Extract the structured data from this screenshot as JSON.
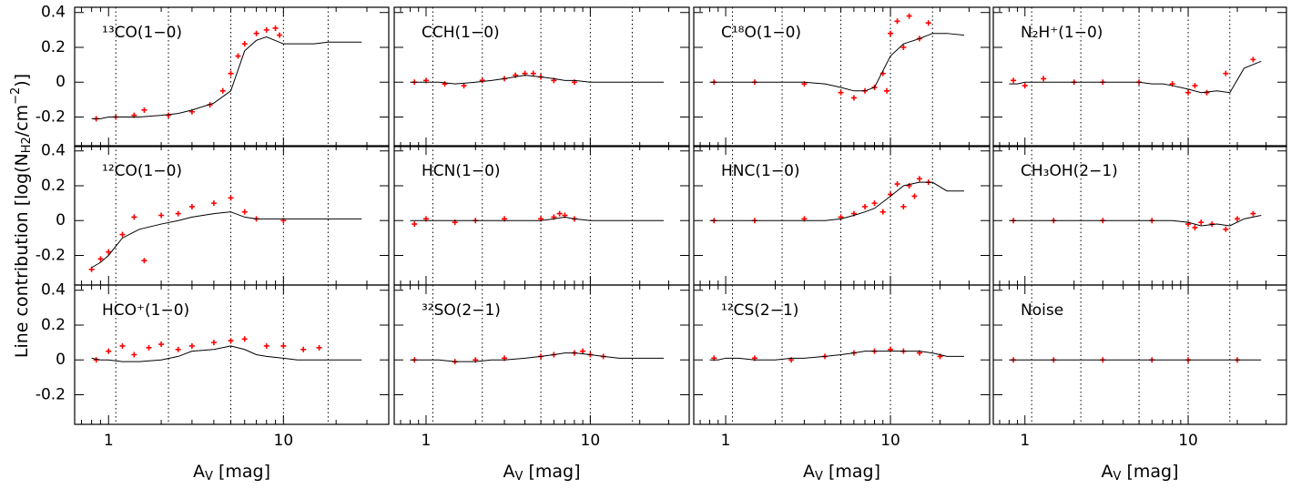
{
  "chart_data": {
    "type": "scatter",
    "log_x": true,
    "xlim": [
      0.64,
      40
    ],
    "xticks": [
      1,
      10
    ],
    "ylim": [
      -0.37,
      0.43
    ],
    "yticks": [
      -0.2,
      0,
      0.2,
      0.4
    ],
    "vlines": [
      1.1,
      2.2,
      5,
      10,
      18
    ],
    "y_label": [
      "Line contribution [log(N",
      "H2",
      "/cm",
      "−2",
      ")]"
    ],
    "x_label": [
      "A",
      "V",
      " [mag]"
    ],
    "line_color": "#000000",
    "point_color": "#ff0000",
    "line_x": [
      0.8,
      0.9,
      1,
      1.2,
      1.5,
      2,
      2.5,
      3,
      4,
      5,
      6,
      7,
      8,
      10,
      12,
      15,
      18,
      22,
      28
    ],
    "panels": [
      {
        "title": "¹³CO(1−0)",
        "line": [
          -0.21,
          -0.21,
          -0.2,
          -0.2,
          -0.2,
          -0.19,
          -0.18,
          -0.16,
          -0.12,
          -0.05,
          0.18,
          0.24,
          0.26,
          0.22,
          0.22,
          0.22,
          0.23,
          0.23,
          0.23
        ],
        "points": {
          "x": [
            0.85,
            1.1,
            1.4,
            1.6,
            2.2,
            3,
            3.8,
            4.5,
            5,
            5.5,
            6,
            7,
            8,
            9,
            9.5
          ],
          "y": [
            -0.21,
            -0.2,
            -0.19,
            -0.16,
            -0.19,
            -0.17,
            -0.13,
            -0.05,
            0.05,
            0.15,
            0.22,
            0.28,
            0.3,
            0.31,
            0.27
          ]
        }
      },
      {
        "title": "CCH(1−0)",
        "line": [
          0,
          0,
          0,
          0,
          -0.01,
          0,
          0.01,
          0.02,
          0.04,
          0.03,
          0.02,
          0.01,
          0.01,
          0,
          0,
          0,
          0,
          0,
          0
        ],
        "points": {
          "x": [
            0.85,
            1,
            1.3,
            1.7,
            2.2,
            3,
            3.5,
            4,
            4.5,
            5,
            6,
            8
          ],
          "y": [
            0,
            0.01,
            -0.01,
            -0.02,
            0.01,
            0.02,
            0.04,
            0.05,
            0.05,
            0.03,
            0.01,
            0
          ]
        }
      },
      {
        "title": "C¹⁸O(1−0)",
        "line": [
          0,
          0,
          0,
          0,
          0,
          0,
          0,
          0,
          -0.01,
          -0.03,
          -0.05,
          -0.05,
          -0.03,
          0.15,
          0.22,
          0.25,
          0.28,
          0.28,
          0.27
        ],
        "points": {
          "x": [
            0.85,
            1.5,
            3,
            5,
            6,
            7,
            8,
            9,
            9.5,
            10,
            11,
            12,
            13,
            15,
            17
          ],
          "y": [
            0,
            0,
            -0.01,
            -0.06,
            -0.09,
            -0.05,
            -0.03,
            0.05,
            -0.05,
            0.28,
            0.35,
            0.2,
            0.38,
            0.25,
            0.34
          ]
        }
      },
      {
        "title": "N₂H⁺(1−0)",
        "line": [
          -0.01,
          -0.01,
          0,
          0,
          0,
          0,
          0,
          0,
          0,
          0,
          -0.01,
          -0.01,
          -0.02,
          -0.04,
          -0.06,
          -0.05,
          -0.06,
          0.08,
          0.12
        ],
        "points": {
          "x": [
            0.85,
            1,
            1.3,
            2,
            3,
            5,
            8,
            10,
            11,
            13,
            17,
            25
          ],
          "y": [
            0.01,
            -0.02,
            0.02,
            0,
            0,
            0,
            -0.01,
            -0.06,
            -0.02,
            -0.06,
            0.05,
            0.13
          ]
        }
      },
      {
        "title": "¹²CO(1−0)",
        "line": [
          -0.27,
          -0.24,
          -0.2,
          -0.1,
          -0.05,
          -0.02,
          0,
          0.02,
          0.04,
          0.05,
          0.02,
          0.01,
          0.01,
          0.01,
          0.01,
          0.01,
          0.01,
          0.01,
          0.01
        ],
        "points": {
          "x": [
            0.8,
            0.9,
            1,
            1.2,
            1.4,
            1.6,
            2,
            2.5,
            3,
            4,
            5,
            6,
            7,
            10
          ],
          "y": [
            -0.28,
            -0.22,
            -0.18,
            -0.08,
            0.02,
            -0.23,
            0.03,
            0.04,
            0.08,
            0.1,
            0.13,
            0.05,
            0.01,
            0
          ]
        }
      },
      {
        "title": "HCN(1−0)",
        "line": [
          0,
          0,
          0,
          0,
          0,
          0,
          0,
          0,
          0,
          0,
          0.01,
          0.02,
          0.01,
          0,
          0,
          0,
          0,
          0,
          0
        ],
        "points": {
          "x": [
            0.85,
            1,
            1.5,
            2,
            3,
            5,
            6,
            6.5,
            7,
            8
          ],
          "y": [
            -0.02,
            0.01,
            -0.01,
            0,
            0.01,
            0.01,
            0.02,
            0.04,
            0.03,
            0.01
          ]
        }
      },
      {
        "title": "HNC(1−0)",
        "line": [
          0,
          0,
          0,
          0,
          0,
          0,
          0,
          0,
          0,
          0.01,
          0.03,
          0.05,
          0.07,
          0.14,
          0.2,
          0.22,
          0.22,
          0.17,
          0.17
        ],
        "points": {
          "x": [
            0.85,
            1.5,
            3,
            5,
            6,
            7,
            8,
            9,
            10,
            11,
            12,
            13,
            14,
            15,
            17
          ],
          "y": [
            0,
            0,
            0.01,
            0.02,
            0.04,
            0.08,
            0.1,
            0.05,
            0.15,
            0.21,
            0.08,
            0.2,
            0.14,
            0.24,
            0.22
          ]
        }
      },
      {
        "title": "CH₃OH(2−1)",
        "line": [
          0,
          0,
          0,
          0,
          0,
          0,
          0,
          0,
          0,
          0,
          0,
          0,
          0,
          -0.01,
          -0.03,
          -0.02,
          -0.03,
          0.01,
          0.03
        ],
        "points": {
          "x": [
            0.85,
            1.5,
            3,
            6,
            10,
            11,
            12,
            14,
            17,
            20,
            25
          ],
          "y": [
            0,
            0,
            0,
            0,
            -0.02,
            -0.04,
            -0.01,
            -0.02,
            -0.05,
            0.01,
            0.04
          ]
        }
      },
      {
        "title": "HCO⁺(1−0)",
        "line": [
          0.01,
          0,
          0,
          -0.01,
          -0.01,
          0,
          0.02,
          0.05,
          0.06,
          0.08,
          0.06,
          0.03,
          0.02,
          0.01,
          0,
          0,
          0,
          0,
          0
        ],
        "points": {
          "x": [
            0.85,
            1,
            1.2,
            1.4,
            1.7,
            2,
            2.5,
            3,
            4,
            5,
            6,
            8,
            10,
            13,
            16
          ],
          "y": [
            0,
            0.05,
            0.08,
            0.03,
            0.07,
            0.09,
            0.06,
            0.08,
            0.1,
            0.11,
            0.12,
            0.08,
            0.08,
            0.06,
            0.07
          ]
        }
      },
      {
        "title": "³²SO(2−1)",
        "line": [
          0,
          0,
          0,
          0,
          -0.01,
          -0.01,
          0,
          0,
          0.01,
          0.02,
          0.03,
          0.04,
          0.04,
          0.03,
          0.02,
          0.01,
          0.01,
          0.01,
          0.01
        ],
        "points": {
          "x": [
            0.85,
            1.5,
            2,
            3,
            5,
            6,
            8,
            9,
            10,
            12
          ],
          "y": [
            0,
            -0.01,
            0,
            0.01,
            0.02,
            0.03,
            0.04,
            0.05,
            0.03,
            0.02
          ]
        }
      },
      {
        "title": "¹²CS(2−1)",
        "line": [
          0,
          0,
          0.01,
          0.01,
          0,
          0,
          0.01,
          0.01,
          0.02,
          0.03,
          0.04,
          0.05,
          0.05,
          0.05,
          0.05,
          0.05,
          0.04,
          0.02,
          0.02
        ],
        "points": {
          "x": [
            0.85,
            1.5,
            2.5,
            4,
            6,
            8,
            10,
            12,
            15,
            20
          ],
          "y": [
            0.01,
            0.01,
            0,
            0.02,
            0.04,
            0.05,
            0.06,
            0.05,
            0.04,
            0.02
          ]
        }
      },
      {
        "title": "Noise",
        "line": [
          0,
          0,
          0,
          0,
          0,
          0,
          0,
          0,
          0,
          0,
          0,
          0,
          0,
          0,
          0,
          0,
          0,
          0,
          0
        ],
        "points": {
          "x": [
            0.85,
            1.5,
            3,
            6,
            10,
            20
          ],
          "y": [
            0,
            0,
            0,
            0,
            0,
            0
          ]
        }
      }
    ]
  }
}
